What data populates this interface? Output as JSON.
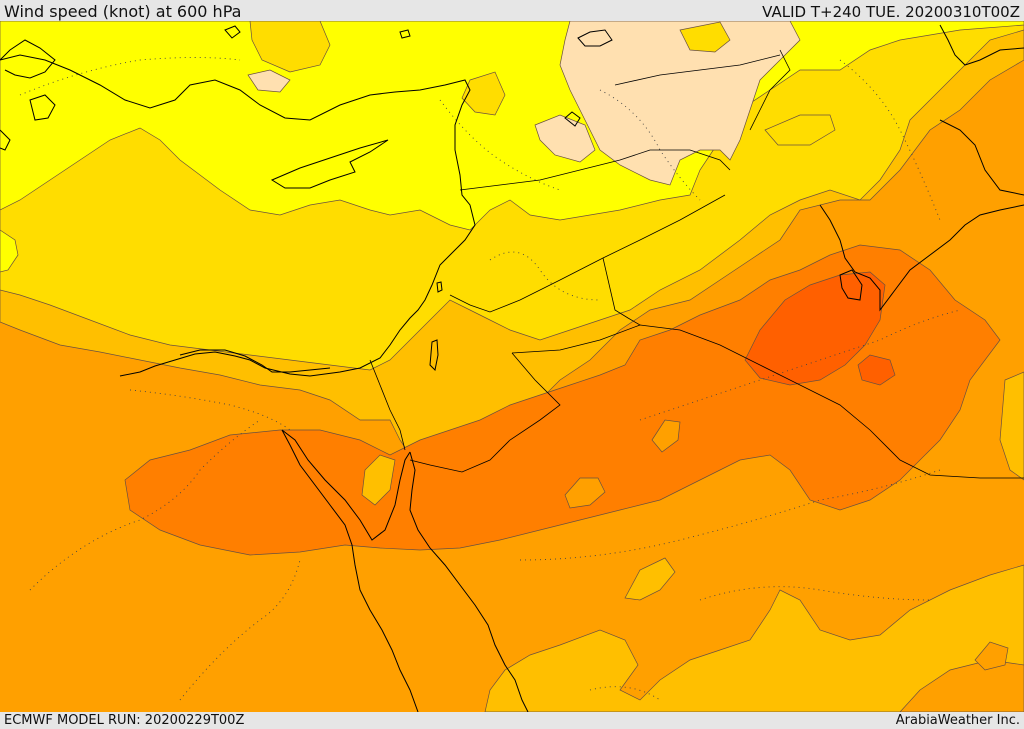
{
  "header": {
    "title": "Wind speed (knot) at 600 hPa",
    "valid": "VALID T+240 TUE. 20200310T00Z"
  },
  "footer": {
    "model_run": "ECMWF MODEL RUN: 20200229T00Z",
    "credit": "ArabiaWeather Inc."
  },
  "map": {
    "field": "wind speed",
    "level": "600 hPa",
    "colors": {
      "lightest": "#ffe0b0",
      "yellow": "#ffff00",
      "gold": "#ffdd00",
      "amber": "#ffbf00",
      "orange": "#ffa000",
      "deep_orange": "#ff7f00",
      "red_orange": "#ff6000",
      "contour_line": "#6a5040",
      "coastline": "#000000"
    }
  }
}
